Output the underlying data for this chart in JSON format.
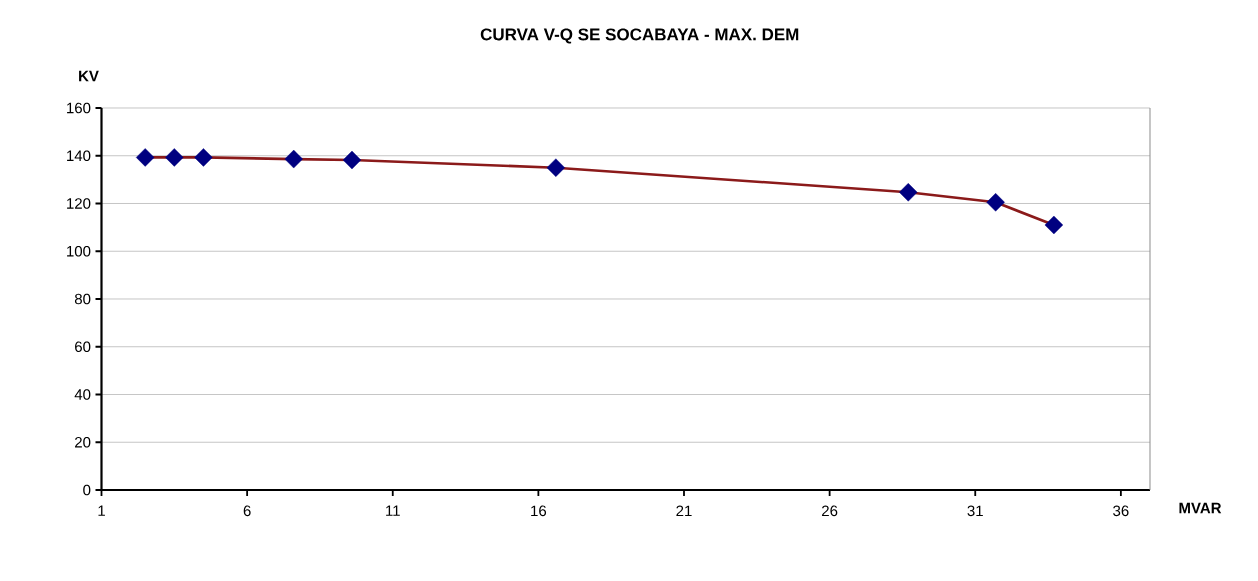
{
  "chart_data": {
    "type": "line",
    "title": "CURVA V-Q  SE SOCABAYA - MAX. DEM",
    "xlabel": "MVAR",
    "ylabel": "KV",
    "x": [
      2.5,
      3.5,
      4.5,
      7.6,
      9.6,
      16.6,
      28.7,
      31.7,
      33.7
    ],
    "series": [
      {
        "color": "#8b1a1a",
        "colors": [
          "#000080",
          "#000080",
          "#000080",
          "#000080",
          "#000080",
          "#000080",
          "#000080",
          "#000080",
          "#000080"
        ],
        "values": [
          139.3,
          139.3,
          139.3,
          138.6,
          138.2,
          135.0,
          124.7,
          120.5,
          111.0
        ]
      }
    ],
    "xlim": [
      1,
      37
    ],
    "ylim": [
      0,
      160
    ],
    "xticks": [
      1,
      6,
      11,
      16,
      21,
      26,
      31,
      36
    ],
    "yticks": [
      0,
      20,
      40,
      60,
      80,
      100,
      120,
      140,
      160
    ],
    "grid": "y",
    "marker": "diamond",
    "line_style": "solid"
  }
}
